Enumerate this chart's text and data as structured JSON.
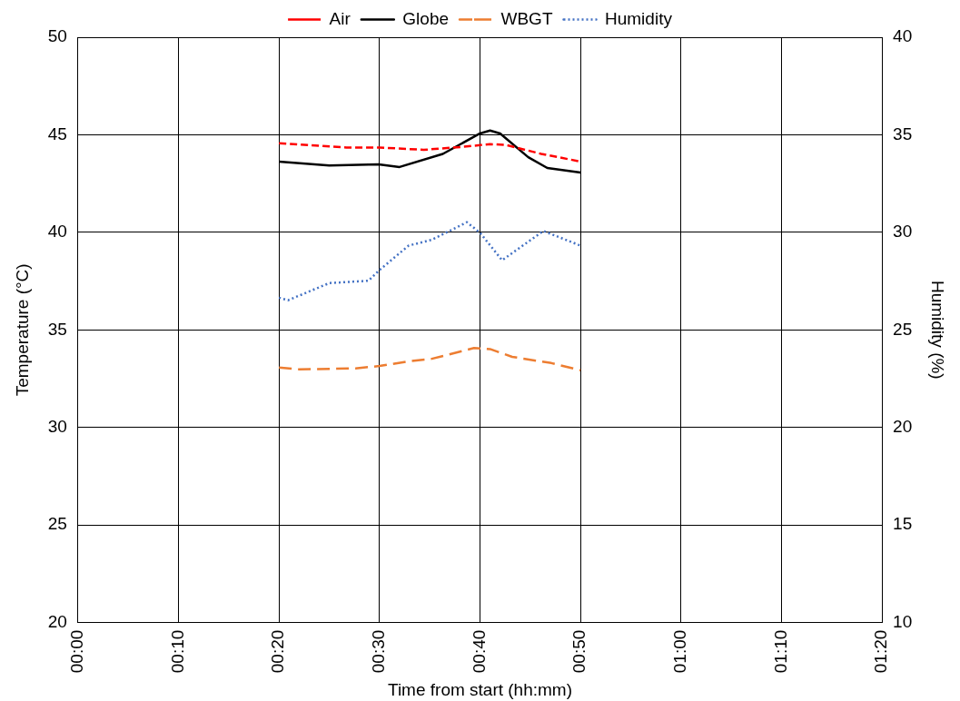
{
  "chart_data": {
    "type": "line",
    "xlabel": "Time from start (hh:mm)",
    "ylabel": "Temperature (°C)",
    "y2label": "Humidity (%)",
    "xlim": [
      0,
      1.3333
    ],
    "xticks": [
      {
        "value": 0,
        "label": "00:00"
      },
      {
        "value": 0.1667,
        "label": "00:10"
      },
      {
        "value": 0.3333,
        "label": "00:20"
      },
      {
        "value": 0.5,
        "label": "00:30"
      },
      {
        "value": 0.6667,
        "label": "00:40"
      },
      {
        "value": 0.8333,
        "label": "00:50"
      },
      {
        "value": 1,
        "label": "01:00"
      },
      {
        "value": 1.1667,
        "label": "01:10"
      },
      {
        "value": 1.3333,
        "label": "01:20"
      }
    ],
    "ylim": [
      20,
      50
    ],
    "yticks": [
      20,
      25,
      30,
      35,
      40,
      45,
      50
    ],
    "y2lim": [
      10,
      40
    ],
    "y2ticks": [
      10,
      15,
      20,
      25,
      30,
      35,
      40
    ],
    "grid": true,
    "legend": "top",
    "marker": "none",
    "series": [
      {
        "name": "Air",
        "color": "#ff0000",
        "line_style": "dashed",
        "x": [
          0.3333,
          0.445,
          0.5,
          0.5733,
          0.6367,
          0.6833,
          0.71,
          0.7683,
          0.8333
        ],
        "values": [
          44.57,
          44.35,
          44.35,
          44.23,
          44.38,
          44.52,
          44.48,
          44.02,
          43.63
        ]
      },
      {
        "name": "Globe",
        "color": "#000000",
        "line_style": "solid",
        "x": [
          0.3333,
          0.4167,
          0.4983,
          0.5333,
          0.605,
          0.6667,
          0.6833,
          0.7,
          0.7467,
          0.7783,
          0.8333
        ],
        "values": [
          43.63,
          43.43,
          43.48,
          43.35,
          44.02,
          45.07,
          45.22,
          45.07,
          43.85,
          43.3,
          43.07
        ]
      },
      {
        "name": "WBGT",
        "color": "#ed7d31",
        "line_style": "dashed",
        "x": [
          0.3333,
          0.3667,
          0.46,
          0.5,
          0.55,
          0.5867,
          0.6567,
          0.6833,
          0.72,
          0.785,
          0.8333
        ],
        "values": [
          33.07,
          32.98,
          33.03,
          33.15,
          33.4,
          33.52,
          34.07,
          34.02,
          33.62,
          33.3,
          32.93
        ]
      },
      {
        "name": "Humidity",
        "color": "#4472c4",
        "line_style": "dotted",
        "axis": "y2",
        "x": [
          0.3333,
          0.3483,
          0.4167,
          0.4817,
          0.5,
          0.5483,
          0.5867,
          0.645,
          0.6667,
          0.7033,
          0.7717,
          0.8333
        ],
        "values": [
          26.65,
          26.52,
          27.4,
          27.52,
          28.07,
          29.32,
          29.62,
          30.52,
          29.98,
          28.57,
          30.07,
          29.32
        ]
      }
    ]
  }
}
